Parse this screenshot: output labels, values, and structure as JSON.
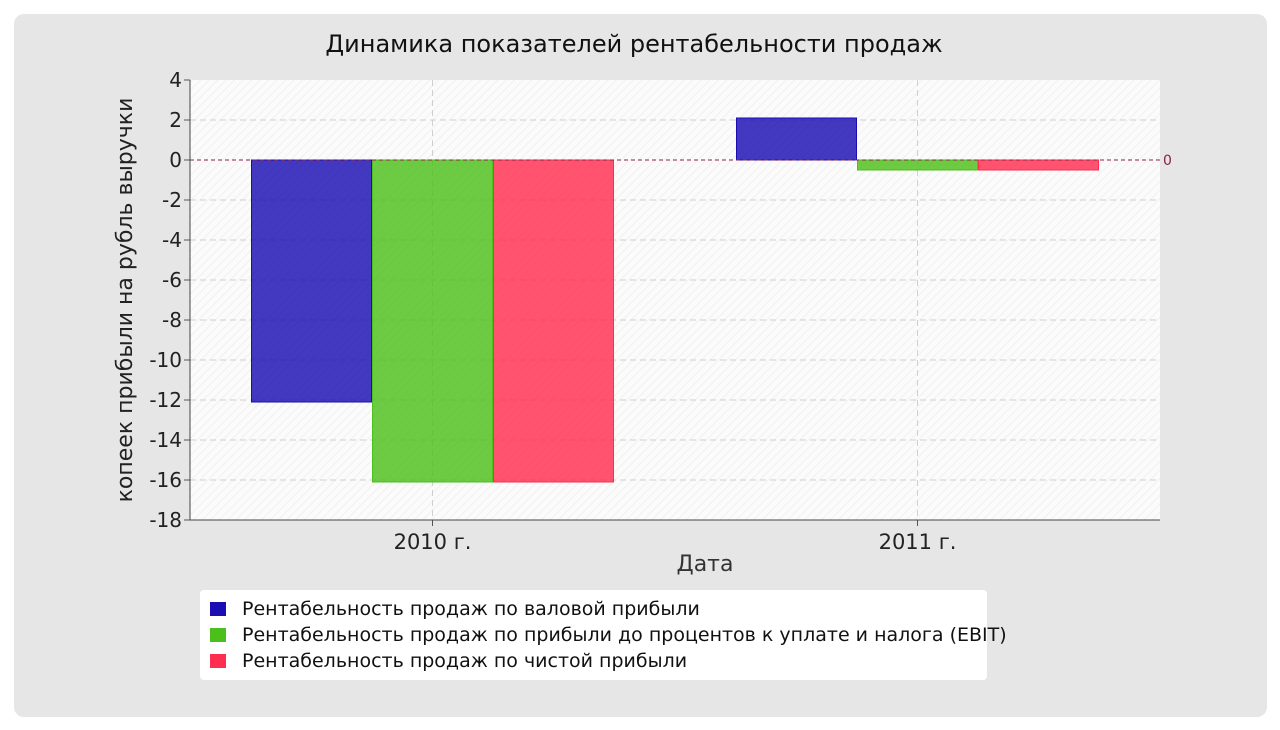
{
  "chart_data": {
    "type": "bar",
    "title": "Динамика показателей рентабельности продаж",
    "xlabel": "Дата",
    "ylabel": "копеек прибыли на рубль выручки",
    "categories": [
      "2010 г.",
      "2011 г."
    ],
    "ylim": [
      -18,
      4
    ],
    "yticks": [
      "4",
      "2",
      "0",
      "-2",
      "-4",
      "-6",
      "-8",
      "-10",
      "-12",
      "-14",
      "-16",
      "-18"
    ],
    "grid": true,
    "zero_line_label": "0",
    "legend_position": "bottom-left",
    "series": [
      {
        "name": "Рентабельность продаж по валовой прибыли",
        "values": [
          -12.1,
          2.1
        ],
        "color": "#1a0db3"
      },
      {
        "name": "Рентабельность продаж по прибыли до процентов к уплате и налога (EBIT)",
        "values": [
          -16.1,
          -0.5
        ],
        "color": "#4cbf1a"
      },
      {
        "name": "Рентабельность продаж по чистой прибыли",
        "values": [
          -16.1,
          -0.5
        ],
        "color": "#ff2d4f"
      }
    ]
  }
}
